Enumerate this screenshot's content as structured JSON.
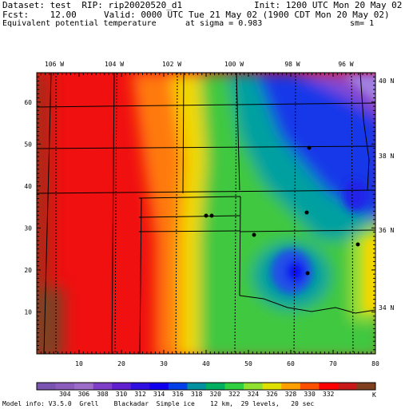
{
  "header": {
    "dataset": "Dataset: test  RIP: rip20020520_d1",
    "init": "Init: 1200 UTC Mon 20 May 02",
    "fcst": "Fcst:    12.00",
    "valid": "Valid: 0000 UTC Tue 21 May 02 (1900 CDT Mon 20 May 02)",
    "field": "Equivalent potential temperature",
    "sigma": "at sigma = 0.983",
    "sm": "sm= 1"
  },
  "map": {
    "lon_labels": [
      "106 W",
      "104 W",
      "102 W",
      "100 W",
      "98 W",
      "96 W"
    ],
    "lat_labels": [
      "40 N",
      "38 N",
      "36 N",
      "34 N"
    ],
    "y_ticks": [
      "10",
      "20",
      "30",
      "40",
      "50",
      "60"
    ],
    "x_ticks": [
      "10",
      "20",
      "30",
      "40",
      "50",
      "60",
      "70",
      "80"
    ],
    "grid_x_max": 80,
    "grid_y_max": 67
  },
  "colorbar": {
    "labels": [
      "304",
      "306",
      "308",
      "310",
      "312",
      "314",
      "316",
      "318",
      "320",
      "322",
      "324",
      "326",
      "328",
      "330",
      "332"
    ],
    "unit": "K",
    "colors": [
      "#7a54b0",
      "#8c5cbc",
      "#9d6cc8",
      "#7f3ec8",
      "#6020d0",
      "#3010e0",
      "#1000f0",
      "#0040e8",
      "#0090a0",
      "#00b060",
      "#30d040",
      "#90e030",
      "#e0e000",
      "#ffa000",
      "#ff5000",
      "#ff0000",
      "#c81818",
      "#804020"
    ]
  },
  "footer": {
    "model_info": "Model info: V3.5.0  Grell    Blackadar  Simple ice    12 km,  29 levels,   20 sec"
  }
}
